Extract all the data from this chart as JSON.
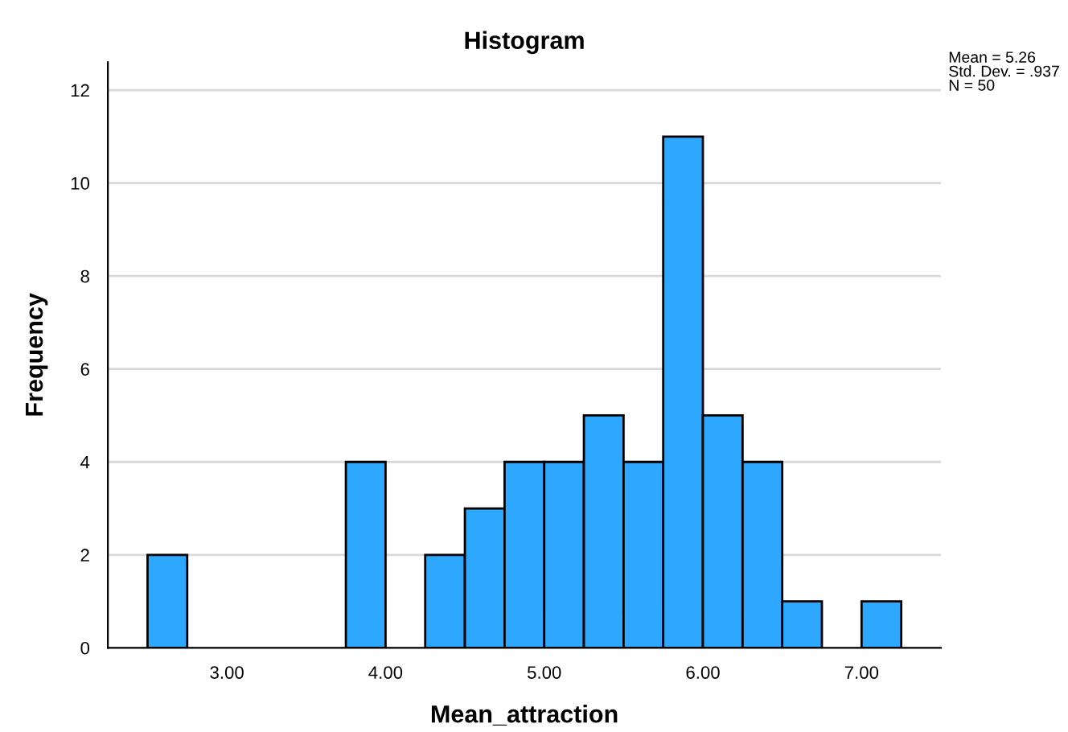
{
  "chart_data": {
    "type": "histogram",
    "title": "Histogram",
    "xlabel": "Mean_attraction",
    "ylabel": "Frequency",
    "bins": [
      2.5,
      2.75,
      3.0,
      3.25,
      3.5,
      3.75,
      4.0,
      4.25,
      4.5,
      4.75,
      5.0,
      5.25,
      5.5,
      5.75,
      6.0,
      6.25,
      6.5,
      6.75,
      7.0,
      7.25
    ],
    "values": [
      2,
      0,
      0,
      0,
      0,
      4,
      0,
      2,
      3,
      4,
      4,
      5,
      4,
      11,
      5,
      4,
      1,
      0,
      1
    ],
    "color": "#2ea8ff",
    "xlim": [
      2.25,
      7.5
    ],
    "ylim": [
      0,
      12.6
    ],
    "xticks": [
      {
        "value": 3,
        "label": "3.00"
      },
      {
        "value": 4,
        "label": "4.00"
      },
      {
        "value": 5,
        "label": "5.00"
      },
      {
        "value": 6,
        "label": "6.00"
      },
      {
        "value": 7,
        "label": "7.00"
      }
    ],
    "yticks": [
      0,
      2,
      4,
      6,
      8,
      10,
      12
    ],
    "grid": "y",
    "annotations": [
      "Mean = 5.26\nStd. Dev. = .937\nN = 50"
    ]
  }
}
